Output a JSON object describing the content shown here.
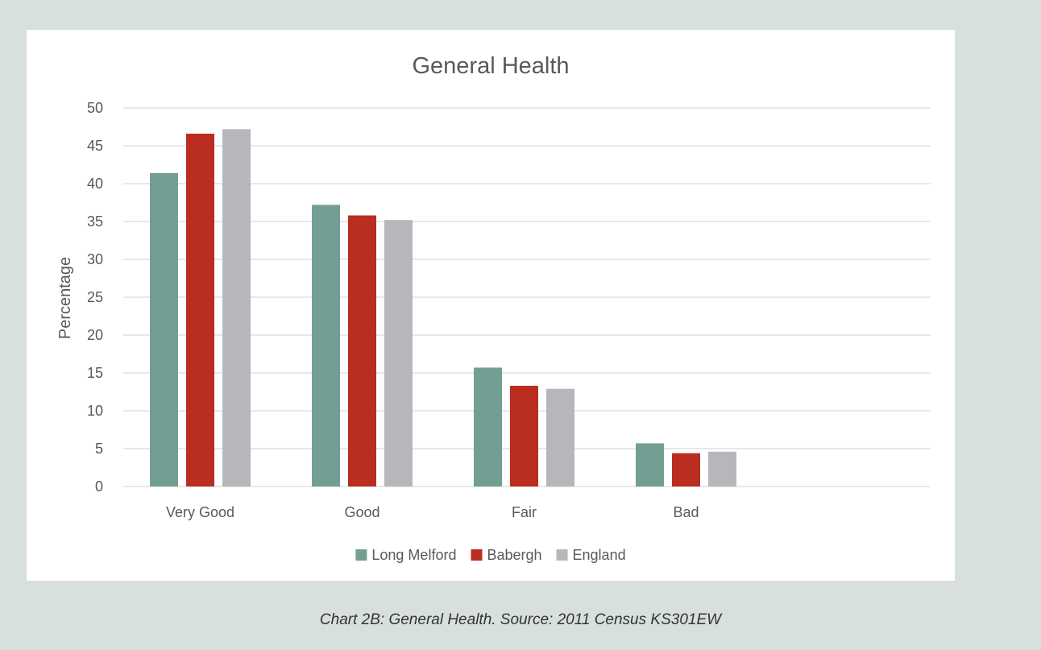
{
  "chart_data": {
    "type": "bar",
    "title": "General Health",
    "xlabel": "",
    "ylabel": "Percentage",
    "ylim": [
      0,
      50
    ],
    "yticks": [
      0,
      5,
      10,
      15,
      20,
      25,
      30,
      35,
      40,
      45,
      50
    ],
    "grid": true,
    "legend_position": "bottom",
    "categories": [
      "Very Good",
      "Good",
      "Fair",
      "Bad"
    ],
    "series": [
      {
        "name": "Long Melford",
        "color": "#739e94",
        "values": [
          41.4,
          37.2,
          15.7,
          5.7
        ]
      },
      {
        "name": "Babergh",
        "color": "#ba2d21",
        "values": [
          46.6,
          35.8,
          13.3,
          4.4
        ]
      },
      {
        "name": "England",
        "color": "#b6b7ba",
        "values": [
          47.2,
          35.2,
          12.9,
          4.6
        ]
      }
    ]
  },
  "caption": "Chart 2B: General Health. Source: 2011 Census KS301EW"
}
